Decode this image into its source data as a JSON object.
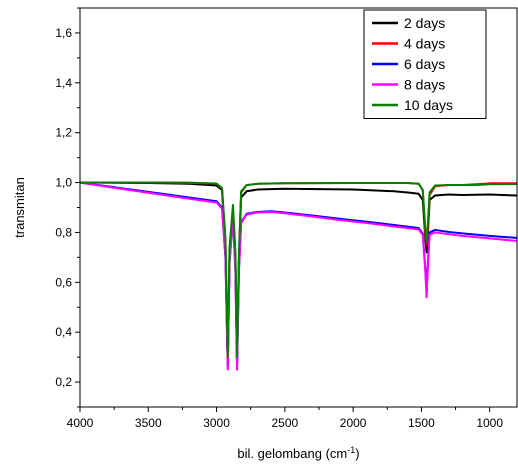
{
  "chart_data": {
    "type": "line",
    "title": "",
    "xlabel": "bil. gelombang (cm",
    "xlabel_sup": "-1",
    "xlabel_close": ")",
    "ylabel": "transmitan",
    "xlim": [
      4000,
      800
    ],
    "ylim": [
      0.1,
      1.7
    ],
    "x_ticks": [
      4000,
      3500,
      3000,
      2500,
      2000,
      1500,
      1000
    ],
    "x_tick_labels": [
      "4000",
      "3500",
      "3000",
      "2500",
      "2000",
      "1500",
      "1000"
    ],
    "y_ticks": [
      0.2,
      0.4,
      0.6,
      0.8,
      1.0,
      1.2,
      1.4,
      1.6
    ],
    "y_tick_labels": [
      "0,2",
      "0,4",
      "0,6",
      "0,8",
      "1,0",
      "1,2",
      "1,4",
      "1,6"
    ],
    "grid": false,
    "legend_position": "top-right",
    "series": [
      {
        "name": "2 days",
        "color": "#000000",
        "points": [
          [
            4000,
            1.0
          ],
          [
            3500,
            0.998
          ],
          [
            3200,
            0.995
          ],
          [
            3000,
            0.988
          ],
          [
            2960,
            0.97
          ],
          [
            2935,
            0.75
          ],
          [
            2918,
            0.27
          ],
          [
            2905,
            0.72
          ],
          [
            2880,
            0.89
          ],
          [
            2862,
            0.7
          ],
          [
            2850,
            0.27
          ],
          [
            2836,
            0.7
          ],
          [
            2820,
            0.94
          ],
          [
            2780,
            0.965
          ],
          [
            2700,
            0.972
          ],
          [
            2500,
            0.975
          ],
          [
            2000,
            0.972
          ],
          [
            1700,
            0.965
          ],
          [
            1600,
            0.96
          ],
          [
            1520,
            0.955
          ],
          [
            1490,
            0.93
          ],
          [
            1472,
            0.78
          ],
          [
            1462,
            0.72
          ],
          [
            1452,
            0.8
          ],
          [
            1440,
            0.93
          ],
          [
            1400,
            0.948
          ],
          [
            1300,
            0.952
          ],
          [
            1200,
            0.95
          ],
          [
            1000,
            0.952
          ],
          [
            800,
            0.948
          ]
        ]
      },
      {
        "name": "4 days",
        "color": "#ff0000",
        "points": [
          [
            4000,
            1.0
          ],
          [
            3500,
            1.0
          ],
          [
            3200,
            0.999
          ],
          [
            3000,
            0.995
          ],
          [
            2960,
            0.975
          ],
          [
            2935,
            0.75
          ],
          [
            2918,
            0.27
          ],
          [
            2905,
            0.72
          ],
          [
            2880,
            0.9
          ],
          [
            2862,
            0.7
          ],
          [
            2850,
            0.27
          ],
          [
            2836,
            0.7
          ],
          [
            2820,
            0.96
          ],
          [
            2780,
            0.99
          ],
          [
            2700,
            0.995
          ],
          [
            2500,
            0.997
          ],
          [
            2000,
            0.998
          ],
          [
            1600,
            0.998
          ],
          [
            1520,
            0.995
          ],
          [
            1490,
            0.97
          ],
          [
            1472,
            0.8
          ],
          [
            1462,
            0.75
          ],
          [
            1452,
            0.82
          ],
          [
            1440,
            0.95
          ],
          [
            1400,
            0.985
          ],
          [
            1300,
            0.99
          ],
          [
            1200,
            0.99
          ],
          [
            1100,
            0.993
          ],
          [
            1000,
            0.997
          ],
          [
            800,
            0.997
          ]
        ]
      },
      {
        "name": "6 days",
        "color": "#0000ff",
        "points": [
          [
            4000,
            1.0
          ],
          [
            3800,
            0.985
          ],
          [
            3600,
            0.97
          ],
          [
            3400,
            0.955
          ],
          [
            3200,
            0.94
          ],
          [
            3000,
            0.925
          ],
          [
            2960,
            0.9
          ],
          [
            2935,
            0.7
          ],
          [
            2918,
            0.26
          ],
          [
            2905,
            0.68
          ],
          [
            2880,
            0.86
          ],
          [
            2862,
            0.65
          ],
          [
            2850,
            0.26
          ],
          [
            2836,
            0.65
          ],
          [
            2820,
            0.84
          ],
          [
            2780,
            0.875
          ],
          [
            2700,
            0.882
          ],
          [
            2600,
            0.885
          ],
          [
            2500,
            0.88
          ],
          [
            2300,
            0.868
          ],
          [
            2100,
            0.855
          ],
          [
            1900,
            0.843
          ],
          [
            1700,
            0.83
          ],
          [
            1520,
            0.818
          ],
          [
            1490,
            0.795
          ],
          [
            1472,
            0.66
          ],
          [
            1462,
            0.56
          ],
          [
            1452,
            0.68
          ],
          [
            1440,
            0.8
          ],
          [
            1400,
            0.81
          ],
          [
            1300,
            0.802
          ],
          [
            1200,
            0.796
          ],
          [
            1000,
            0.786
          ],
          [
            800,
            0.778
          ]
        ]
      },
      {
        "name": "8 days",
        "color": "#ff00ff",
        "points": [
          [
            4000,
            1.0
          ],
          [
            3800,
            0.983
          ],
          [
            3600,
            0.967
          ],
          [
            3400,
            0.951
          ],
          [
            3200,
            0.935
          ],
          [
            3000,
            0.92
          ],
          [
            2960,
            0.895
          ],
          [
            2935,
            0.7
          ],
          [
            2918,
            0.25
          ],
          [
            2905,
            0.68
          ],
          [
            2880,
            0.86
          ],
          [
            2862,
            0.65
          ],
          [
            2850,
            0.25
          ],
          [
            2836,
            0.65
          ],
          [
            2820,
            0.838
          ],
          [
            2780,
            0.872
          ],
          [
            2700,
            0.88
          ],
          [
            2600,
            0.882
          ],
          [
            2500,
            0.877
          ],
          [
            2300,
            0.864
          ],
          [
            2100,
            0.85
          ],
          [
            1900,
            0.838
          ],
          [
            1700,
            0.824
          ],
          [
            1520,
            0.812
          ],
          [
            1490,
            0.79
          ],
          [
            1472,
            0.65
          ],
          [
            1462,
            0.54
          ],
          [
            1452,
            0.67
          ],
          [
            1440,
            0.79
          ],
          [
            1400,
            0.8
          ],
          [
            1300,
            0.793
          ],
          [
            1200,
            0.786
          ],
          [
            1000,
            0.776
          ],
          [
            800,
            0.766
          ]
        ]
      },
      {
        "name": "10 days",
        "color": "#008000",
        "points": [
          [
            4000,
            1.0
          ],
          [
            3500,
            1.0
          ],
          [
            3200,
            0.999
          ],
          [
            3000,
            0.996
          ],
          [
            2960,
            0.978
          ],
          [
            2935,
            0.78
          ],
          [
            2918,
            0.3
          ],
          [
            2905,
            0.74
          ],
          [
            2880,
            0.91
          ],
          [
            2862,
            0.72
          ],
          [
            2850,
            0.3
          ],
          [
            2836,
            0.72
          ],
          [
            2820,
            0.965
          ],
          [
            2780,
            0.99
          ],
          [
            2700,
            0.995
          ],
          [
            2500,
            0.997
          ],
          [
            2000,
            0.998
          ],
          [
            1600,
            0.998
          ],
          [
            1520,
            0.995
          ],
          [
            1490,
            0.97
          ],
          [
            1472,
            0.82
          ],
          [
            1462,
            0.76
          ],
          [
            1452,
            0.84
          ],
          [
            1440,
            0.96
          ],
          [
            1400,
            0.988
          ],
          [
            1300,
            0.99
          ],
          [
            1200,
            0.99
          ],
          [
            1100,
            0.99
          ],
          [
            1000,
            0.993
          ],
          [
            800,
            0.994
          ]
        ]
      }
    ]
  }
}
